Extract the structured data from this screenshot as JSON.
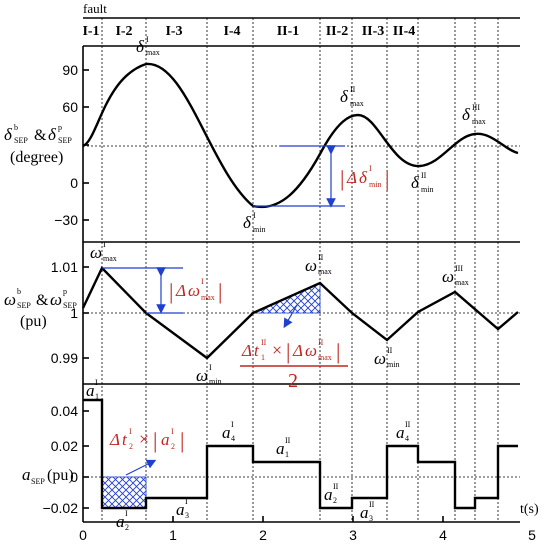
{
  "labels": {
    "fault": "fault",
    "t_unit": "t(s)",
    "panel1_ylabel_line1": "δ",
    "panel1_ylabel_line2": "(degree)",
    "panel2_ylabel_line2": "(pu)",
    "panel3_ylabel": "(pu)",
    "ampersand": "&",
    "abs_bar": "|",
    "times": "×",
    "two": "2"
  },
  "phases": [
    "I-1",
    "I-2",
    "I-3",
    "I-4",
    "II-1",
    "II-2",
    "II-3",
    "II-4"
  ],
  "x_ticks": [
    "0",
    "1",
    "2",
    "3",
    "4",
    "5"
  ],
  "panel1_ticks": [
    "90",
    "60",
    "30",
    "0",
    "−30"
  ],
  "panel2_ticks": [
    "1.01",
    "1",
    "0.99"
  ],
  "panel3_ticks": [
    "0.04",
    "0.02",
    "0",
    "−0.02"
  ],
  "annotations": {
    "delta_max_1": {
      "main": "δ",
      "sup": "I",
      "sub": "max"
    },
    "delta_min_1": {
      "main": "δ",
      "sup": "I",
      "sub": "min"
    },
    "delta_max_2": {
      "main": "δ",
      "sup": "II",
      "sub": "max"
    },
    "delta_min_2": {
      "main": "δ",
      "sup": "II",
      "sub": "min"
    },
    "delta_max_3": {
      "main": "δ",
      "sup": "III",
      "sub": "max"
    },
    "omega_max_1": {
      "main": "ω",
      "sup": "I",
      "sub": "max"
    },
    "omega_min_1": {
      "main": "ω",
      "sup": "I",
      "sub": "min"
    },
    "omega_max_2": {
      "main": "ω",
      "sup": "II",
      "sub": "max"
    },
    "omega_min_2": {
      "main": "ω",
      "sup": "II",
      "sub": "min"
    },
    "omega_max_3": {
      "main": "ω",
      "sup": "III",
      "sub": "max"
    },
    "a1_1": {
      "main": "a",
      "sup": "I",
      "sub": "1"
    },
    "a2_1": {
      "main": "a",
      "sup": "I",
      "sub": "2"
    },
    "a3_1": {
      "main": "a",
      "sup": "I",
      "sub": "3"
    },
    "a4_1": {
      "main": "a",
      "sup": "I",
      "sub": "4"
    },
    "a1_2": {
      "main": "a",
      "sup": "II",
      "sub": "1"
    },
    "a2_2": {
      "main": "a",
      "sup": "II",
      "sub": "2"
    },
    "a3_2": {
      "main": "a",
      "sup": "II",
      "sub": "3"
    },
    "a4_2": {
      "main": "a",
      "sup": "II",
      "sub": "4"
    },
    "a_sep": {
      "main": "a",
      "sub": "SEP"
    },
    "delta_sep_b": {
      "main": "δ",
      "sup": "b",
      "sub": "SEP"
    },
    "delta_sep_p": {
      "main": "δ",
      "sup": "p",
      "sub": "SEP"
    },
    "omega_sep_b": {
      "main": "ω",
      "sup": "b",
      "sub": "SEP"
    },
    "omega_sep_p": {
      "main": "ω",
      "sup": "p",
      "sub": "SEP"
    },
    "red_delta_min": {
      "pre": "Δ",
      "main": "δ",
      "sup": "I",
      "sub": "min"
    },
    "red_omega_max": {
      "pre": "Δ",
      "main": "ω",
      "sup": "I",
      "sub": "max"
    },
    "red_t_omega": {
      "pre": "Δ",
      "main": "t",
      "sup": "II",
      "sub": "1",
      "main2": "ω",
      "sup2": "II",
      "sub2": "max"
    },
    "red_t_a": {
      "pre": "Δ",
      "main": "t",
      "sup": "I",
      "sub": "2",
      "main2": "a",
      "sup2": "I",
      "sub2": "2"
    }
  },
  "colors": {
    "accent_blue": "#1f3fd0",
    "label_red": "#c0261f",
    "curve": "#000000"
  }
}
